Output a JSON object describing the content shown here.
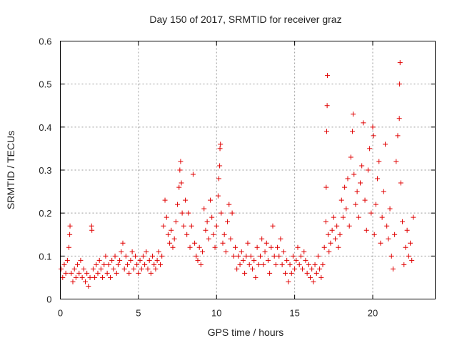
{
  "chart_data": {
    "type": "scatter",
    "title": "Day 150 of 2017, SRMTID for receiver graz",
    "xlabel": "GPS time / hours",
    "ylabel": "SRMTID / TECUs",
    "xlim": [
      0,
      24
    ],
    "ylim": [
      0,
      0.6
    ],
    "xticks": [
      0,
      5,
      10,
      15,
      20
    ],
    "yticks": [
      0,
      0.1,
      0.2,
      0.3,
      0.4,
      0.5,
      0.6
    ],
    "xtick_labels": [
      "0",
      "5",
      "10",
      "15",
      "20"
    ],
    "ytick_labels": [
      "0",
      "0.1",
      "0.2",
      "0.3",
      "0.4",
      "0.5",
      "0.6"
    ],
    "grid": true,
    "marker": "plus",
    "color": "#e00000",
    "series": [
      {
        "name": "SRMTID",
        "points": [
          [
            0.05,
            0.07
          ],
          [
            0.15,
            0.05
          ],
          [
            0.25,
            0.08
          ],
          [
            0.35,
            0.06
          ],
          [
            0.45,
            0.09
          ],
          [
            0.55,
            0.12
          ],
          [
            0.6,
            0.15
          ],
          [
            0.62,
            0.17
          ],
          [
            0.7,
            0.06
          ],
          [
            0.8,
            0.04
          ],
          [
            0.9,
            0.07
          ],
          [
            1.0,
            0.05
          ],
          [
            1.1,
            0.08
          ],
          [
            1.2,
            0.06
          ],
          [
            1.3,
            0.09
          ],
          [
            1.4,
            0.05
          ],
          [
            1.5,
            0.07
          ],
          [
            1.6,
            0.04
          ],
          [
            1.7,
            0.06
          ],
          [
            1.8,
            0.03
          ],
          [
            1.9,
            0.05
          ],
          [
            2.0,
            0.17
          ],
          [
            2.02,
            0.16
          ],
          [
            2.1,
            0.07
          ],
          [
            2.2,
            0.05
          ],
          [
            2.3,
            0.08
          ],
          [
            2.4,
            0.06
          ],
          [
            2.5,
            0.09
          ],
          [
            2.6,
            0.07
          ],
          [
            2.7,
            0.05
          ],
          [
            2.8,
            0.08
          ],
          [
            2.9,
            0.1
          ],
          [
            3.0,
            0.06
          ],
          [
            3.1,
            0.08
          ],
          [
            3.2,
            0.05
          ],
          [
            3.3,
            0.09
          ],
          [
            3.4,
            0.07
          ],
          [
            3.5,
            0.1
          ],
          [
            3.6,
            0.06
          ],
          [
            3.7,
            0.08
          ],
          [
            3.8,
            0.09
          ],
          [
            3.9,
            0.11
          ],
          [
            4.0,
            0.13
          ],
          [
            4.1,
            0.07
          ],
          [
            4.2,
            0.1
          ],
          [
            4.3,
            0.08
          ],
          [
            4.4,
            0.06
          ],
          [
            4.5,
            0.09
          ],
          [
            4.6,
            0.11
          ],
          [
            4.7,
            0.07
          ],
          [
            4.8,
            0.1
          ],
          [
            4.9,
            0.08
          ],
          [
            5.0,
            0.06
          ],
          [
            5.1,
            0.09
          ],
          [
            5.2,
            0.07
          ],
          [
            5.3,
            0.1
          ],
          [
            5.4,
            0.08
          ],
          [
            5.5,
            0.11
          ],
          [
            5.6,
            0.07
          ],
          [
            5.7,
            0.09
          ],
          [
            5.8,
            0.06
          ],
          [
            5.9,
            0.1
          ],
          [
            6.0,
            0.08
          ],
          [
            6.1,
            0.07
          ],
          [
            6.2,
            0.09
          ],
          [
            6.3,
            0.11
          ],
          [
            6.4,
            0.08
          ],
          [
            6.5,
            0.1
          ],
          [
            6.6,
            0.17
          ],
          [
            6.7,
            0.23
          ],
          [
            6.8,
            0.19
          ],
          [
            6.9,
            0.15
          ],
          [
            7.0,
            0.13
          ],
          [
            7.1,
            0.16
          ],
          [
            7.2,
            0.12
          ],
          [
            7.3,
            0.14
          ],
          [
            7.4,
            0.18
          ],
          [
            7.5,
            0.22
          ],
          [
            7.6,
            0.26
          ],
          [
            7.65,
            0.3
          ],
          [
            7.7,
            0.32
          ],
          [
            7.75,
            0.27
          ],
          [
            7.8,
            0.2
          ],
          [
            7.9,
            0.17
          ],
          [
            8.0,
            0.23
          ],
          [
            8.1,
            0.15
          ],
          [
            8.2,
            0.2
          ],
          [
            8.3,
            0.12
          ],
          [
            8.4,
            0.17
          ],
          [
            8.5,
            0.29
          ],
          [
            8.6,
            0.13
          ],
          [
            8.7,
            0.1
          ],
          [
            8.8,
            0.09
          ],
          [
            8.9,
            0.12
          ],
          [
            9.0,
            0.08
          ],
          [
            9.1,
            0.11
          ],
          [
            9.2,
            0.21
          ],
          [
            9.3,
            0.16
          ],
          [
            9.4,
            0.18
          ],
          [
            9.5,
            0.14
          ],
          [
            9.6,
            0.23
          ],
          [
            9.7,
            0.19
          ],
          [
            9.8,
            0.15
          ],
          [
            9.9,
            0.12
          ],
          [
            10.0,
            0.17
          ],
          [
            10.1,
            0.24
          ],
          [
            10.15,
            0.28
          ],
          [
            10.2,
            0.31
          ],
          [
            10.22,
            0.35
          ],
          [
            10.25,
            0.36
          ],
          [
            10.3,
            0.2
          ],
          [
            10.4,
            0.13
          ],
          [
            10.5,
            0.15
          ],
          [
            10.6,
            0.11
          ],
          [
            10.7,
            0.18
          ],
          [
            10.8,
            0.22
          ],
          [
            10.9,
            0.14
          ],
          [
            11.0,
            0.2
          ],
          [
            11.1,
            0.1
          ],
          [
            11.2,
            0.12
          ],
          [
            11.3,
            0.07
          ],
          [
            11.4,
            0.1
          ],
          [
            11.5,
            0.08
          ],
          [
            11.6,
            0.11
          ],
          [
            11.7,
            0.09
          ],
          [
            11.8,
            0.06
          ],
          [
            11.9,
            0.1
          ],
          [
            12.0,
            0.13
          ],
          [
            12.1,
            0.08
          ],
          [
            12.2,
            0.1
          ],
          [
            12.3,
            0.07
          ],
          [
            12.4,
            0.09
          ],
          [
            12.5,
            0.05
          ],
          [
            12.6,
            0.12
          ],
          [
            12.7,
            0.08
          ],
          [
            12.8,
            0.1
          ],
          [
            12.9,
            0.14
          ],
          [
            13.0,
            0.08
          ],
          [
            13.1,
            0.11
          ],
          [
            13.2,
            0.13
          ],
          [
            13.3,
            0.09
          ],
          [
            13.4,
            0.06
          ],
          [
            13.5,
            0.12
          ],
          [
            13.6,
            0.17
          ],
          [
            13.7,
            0.1
          ],
          [
            13.8,
            0.08
          ],
          [
            13.9,
            0.12
          ],
          [
            14.0,
            0.1
          ],
          [
            14.1,
            0.14
          ],
          [
            14.2,
            0.08
          ],
          [
            14.3,
            0.11
          ],
          [
            14.4,
            0.06
          ],
          [
            14.5,
            0.09
          ],
          [
            14.6,
            0.04
          ],
          [
            14.7,
            0.08
          ],
          [
            14.8,
            0.06
          ],
          [
            14.9,
            0.1
          ],
          [
            15.0,
            0.07
          ],
          [
            15.1,
            0.09
          ],
          [
            15.2,
            0.12
          ],
          [
            15.3,
            0.08
          ],
          [
            15.4,
            0.1
          ],
          [
            15.5,
            0.07
          ],
          [
            15.6,
            0.11
          ],
          [
            15.7,
            0.09
          ],
          [
            15.8,
            0.06
          ],
          [
            15.9,
            0.08
          ],
          [
            16.0,
            0.05
          ],
          [
            16.1,
            0.07
          ],
          [
            16.2,
            0.04
          ],
          [
            16.3,
            0.08
          ],
          [
            16.4,
            0.06
          ],
          [
            16.5,
            0.1
          ],
          [
            16.6,
            0.07
          ],
          [
            16.7,
            0.05
          ],
          [
            16.8,
            0.08
          ],
          [
            16.9,
            0.12
          ],
          [
            17.0,
            0.18
          ],
          [
            17.02,
            0.26
          ],
          [
            17.05,
            0.39
          ],
          [
            17.08,
            0.45
          ],
          [
            17.1,
            0.52
          ],
          [
            17.15,
            0.15
          ],
          [
            17.2,
            0.11
          ],
          [
            17.3,
            0.13
          ],
          [
            17.4,
            0.16
          ],
          [
            17.5,
            0.19
          ],
          [
            17.6,
            0.14
          ],
          [
            17.7,
            0.17
          ],
          [
            17.8,
            0.12
          ],
          [
            17.9,
            0.15
          ],
          [
            18.0,
            0.23
          ],
          [
            18.1,
            0.19
          ],
          [
            18.2,
            0.26
          ],
          [
            18.3,
            0.21
          ],
          [
            18.4,
            0.28
          ],
          [
            18.5,
            0.17
          ],
          [
            18.6,
            0.33
          ],
          [
            18.7,
            0.39
          ],
          [
            18.75,
            0.43
          ],
          [
            18.8,
            0.29
          ],
          [
            18.9,
            0.22
          ],
          [
            19.0,
            0.25
          ],
          [
            19.1,
            0.19
          ],
          [
            19.2,
            0.27
          ],
          [
            19.3,
            0.31
          ],
          [
            19.4,
            0.41
          ],
          [
            19.5,
            0.23
          ],
          [
            19.6,
            0.16
          ],
          [
            19.7,
            0.3
          ],
          [
            19.8,
            0.35
          ],
          [
            19.9,
            0.2
          ],
          [
            20.0,
            0.4
          ],
          [
            20.05,
            0.38
          ],
          [
            20.1,
            0.15
          ],
          [
            20.2,
            0.22
          ],
          [
            20.3,
            0.28
          ],
          [
            20.4,
            0.32
          ],
          [
            20.5,
            0.13
          ],
          [
            20.6,
            0.19
          ],
          [
            20.7,
            0.25
          ],
          [
            20.8,
            0.36
          ],
          [
            20.9,
            0.17
          ],
          [
            21.0,
            0.14
          ],
          [
            21.1,
            0.21
          ],
          [
            21.2,
            0.1
          ],
          [
            21.3,
            0.07
          ],
          [
            21.4,
            0.15
          ],
          [
            21.5,
            0.32
          ],
          [
            21.6,
            0.38
          ],
          [
            21.7,
            0.42
          ],
          [
            21.72,
            0.5
          ],
          [
            21.75,
            0.55
          ],
          [
            21.8,
            0.27
          ],
          [
            21.9,
            0.18
          ],
          [
            22.0,
            0.08
          ],
          [
            22.1,
            0.12
          ],
          [
            22.2,
            0.16
          ],
          [
            22.3,
            0.1
          ],
          [
            22.4,
            0.13
          ],
          [
            22.5,
            0.09
          ],
          [
            22.6,
            0.19
          ]
        ]
      }
    ]
  }
}
